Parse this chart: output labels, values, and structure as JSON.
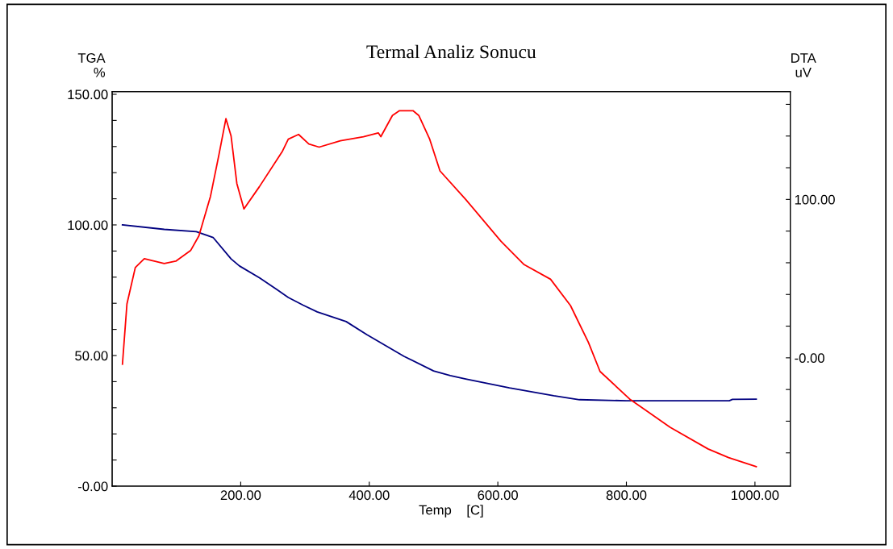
{
  "chart_data": {
    "type": "line",
    "title": "Termal Analiz Sonucu",
    "xlabel": "Temp    [C]",
    "ylabel": "TGA\n%",
    "y2label": "DTA\nuV",
    "xlim": [
      0,
      1055
    ],
    "xticks": [
      {
        "value": 200,
        "label": "200.00"
      },
      {
        "value": 400,
        "label": "400.00"
      },
      {
        "value": 600,
        "label": "600.00"
      },
      {
        "value": 800,
        "label": "800.00"
      },
      {
        "value": 1000,
        "label": "1000.00"
      }
    ],
    "ylim": [
      0,
      151
    ],
    "yticks": [
      {
        "value": 0,
        "label": "-0.00"
      },
      {
        "value": 10,
        "label": null
      },
      {
        "value": 20,
        "label": null
      },
      {
        "value": 30,
        "label": null
      },
      {
        "value": 40,
        "label": null
      },
      {
        "value": 50,
        "label": "50.00"
      },
      {
        "value": 60,
        "label": null
      },
      {
        "value": 70,
        "label": null
      },
      {
        "value": 80,
        "label": null
      },
      {
        "value": 90,
        "label": null
      },
      {
        "value": 100,
        "label": "100.00"
      },
      {
        "value": 110,
        "label": null
      },
      {
        "value": 120,
        "label": null
      },
      {
        "value": 130,
        "label": null
      },
      {
        "value": 140,
        "label": null
      },
      {
        "value": 150,
        "label": "150.00"
      }
    ],
    "y2lim": [
      -81,
      168
    ],
    "y2ticks": [
      {
        "value": -60,
        "label": null
      },
      {
        "value": -40,
        "label": null
      },
      {
        "value": -20,
        "label": null
      },
      {
        "value": 0,
        "label": "-0.00"
      },
      {
        "value": 20,
        "label": null
      },
      {
        "value": 40,
        "label": null
      },
      {
        "value": 60,
        "label": null
      },
      {
        "value": 80,
        "label": null
      },
      {
        "value": 100,
        "label": "100.00"
      },
      {
        "value": 120,
        "label": null
      },
      {
        "value": 140,
        "label": null
      },
      {
        "value": 160,
        "label": null
      }
    ],
    "grid": false,
    "legend": false,
    "line_style": "solid",
    "marker": "none",
    "series": [
      {
        "color": "#000080",
        "x": [
          16,
          81,
          131,
          157,
          185,
          198,
          229,
          256,
          274,
          297,
          319,
          364,
          396,
          454,
          500,
          526,
          550,
          618,
          687,
          727,
          800,
          960,
          965,
          1002
        ],
        "values": [
          100,
          98.3,
          97.4,
          95.2,
          87,
          84.3,
          79.8,
          75.3,
          72.2,
          69.3,
          66.7,
          63,
          58,
          49.7,
          44.1,
          42.3,
          41,
          37.6,
          34.6,
          33.1,
          32.7,
          32.7,
          33.2,
          33.3
        ]
      },
      {
        "color": "#ff0000",
        "axis": "y2",
        "x": [
          16,
          23,
          36,
          50,
          81,
          99,
          122,
          135,
          153,
          166,
          177,
          185,
          194,
          205,
          229,
          265,
          274,
          290,
          306,
          322,
          355,
          391,
          414,
          418,
          436,
          447,
          468,
          477,
          494,
          510,
          550,
          605,
          641,
          682,
          713,
          741,
          759,
          805,
          868,
          927,
          959,
          1002
        ],
        "values": [
          -4,
          34,
          57,
          62.6,
          59.5,
          61,
          67.7,
          77,
          102,
          128,
          151,
          140,
          110,
          94,
          108,
          130.5,
          138,
          141,
          135,
          133,
          137,
          139.6,
          142,
          139.6,
          153,
          156,
          156,
          153,
          138,
          118,
          100,
          73.5,
          58.8,
          49.6,
          33,
          9.7,
          -8.6,
          -26,
          -43.8,
          -57.5,
          -63,
          -68.7
        ]
      }
    ]
  }
}
